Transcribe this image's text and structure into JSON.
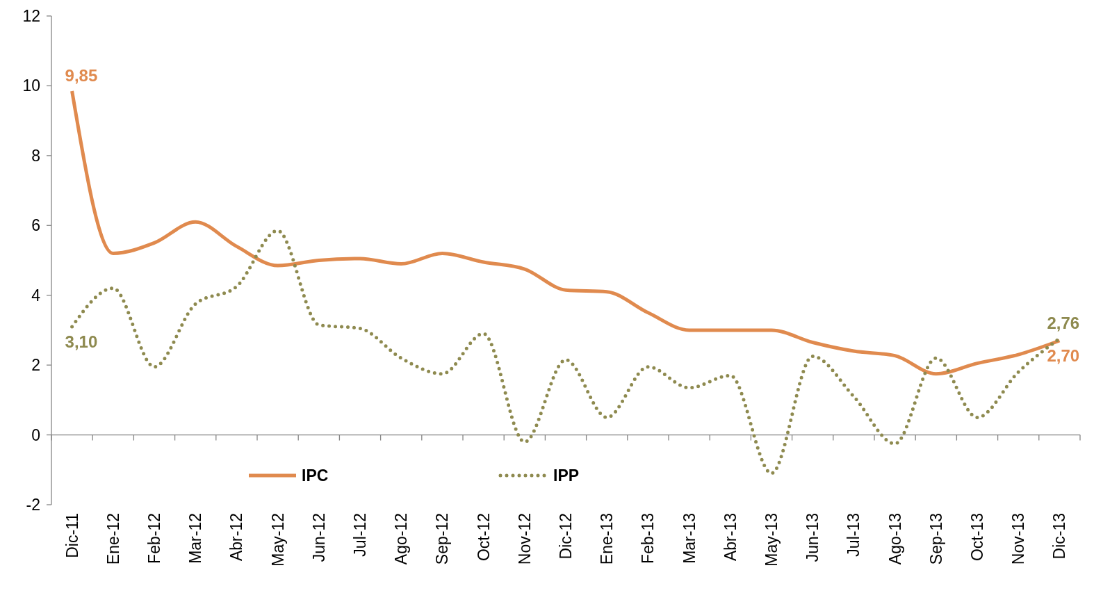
{
  "chart_data": {
    "type": "line",
    "categories": [
      "Dic-11",
      "Ene-12",
      "Feb-12",
      "Mar-12",
      "Abr-12",
      "May-12",
      "Jun-12",
      "Jul-12",
      "Ago-12",
      "Sep-12",
      "Oct-12",
      "Nov-12",
      "Dic-12",
      "Ene-13",
      "Feb-13",
      "Mar-13",
      "Abr-13",
      "May-13",
      "Jun-13",
      "Jul-13",
      "Ago-13",
      "Sep-13",
      "Oct-13",
      "Nov-13",
      "Dic-13"
    ],
    "series": [
      {
        "name": "IPC",
        "color": "#e08a4e",
        "line_style": "solid",
        "values": [
          9.85,
          5.2,
          5.5,
          6.1,
          5.4,
          4.85,
          5.0,
          5.05,
          4.9,
          5.2,
          4.95,
          4.75,
          4.15,
          4.1,
          3.5,
          3.0,
          3.0,
          3.0,
          2.65,
          2.4,
          2.27,
          1.75,
          2.05,
          2.3,
          2.7
        ],
        "value_labels": [
          "9,85",
          null,
          null,
          null,
          null,
          null,
          null,
          null,
          null,
          null,
          null,
          null,
          null,
          null,
          null,
          null,
          null,
          null,
          null,
          null,
          null,
          null,
          null,
          null,
          "2,70"
        ]
      },
      {
        "name": "IPP",
        "color": "#8e8a4f",
        "line_style": "dotted",
        "values": [
          3.1,
          4.2,
          1.95,
          3.75,
          4.25,
          5.85,
          3.15,
          3.05,
          2.2,
          1.75,
          2.9,
          -0.2,
          2.15,
          0.5,
          1.95,
          1.35,
          1.7,
          -1.1,
          2.25,
          1.1,
          -0.25,
          2.2,
          0.5,
          1.8,
          2.76
        ],
        "value_labels": [
          "3,10",
          null,
          null,
          null,
          null,
          null,
          null,
          null,
          null,
          null,
          null,
          null,
          null,
          null,
          null,
          null,
          null,
          null,
          null,
          null,
          null,
          null,
          null,
          null,
          "2,76"
        ]
      }
    ],
    "ylim": [
      -2,
      12
    ],
    "yticks": [
      -2,
      0,
      2,
      4,
      6,
      8,
      10,
      12
    ],
    "legend": "bottom",
    "marker": "none"
  }
}
